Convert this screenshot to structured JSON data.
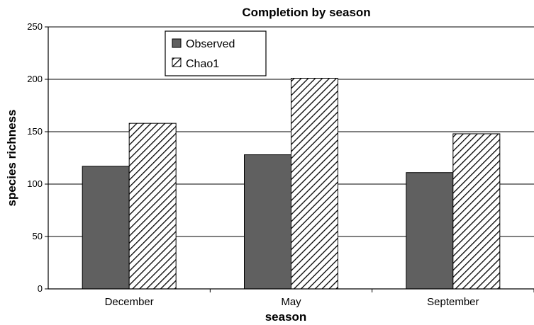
{
  "chart_data": {
    "type": "bar",
    "title": "Completion by season",
    "xlabel": "season",
    "ylabel": "species richness",
    "categories": [
      "December",
      "May",
      "September"
    ],
    "series": [
      {
        "name": "Observed",
        "values": [
          117,
          128,
          111
        ],
        "fill": "#606060",
        "pattern": "solid"
      },
      {
        "name": "Chao1",
        "values": [
          158,
          201,
          148
        ],
        "fill": "#ffffff",
        "pattern": "diagonal-hatch"
      }
    ],
    "ylim": [
      0,
      250
    ],
    "yticks": [
      "0",
      "50",
      "100",
      "150",
      "200",
      "250"
    ],
    "grid": true,
    "legend_position": "top-left"
  }
}
